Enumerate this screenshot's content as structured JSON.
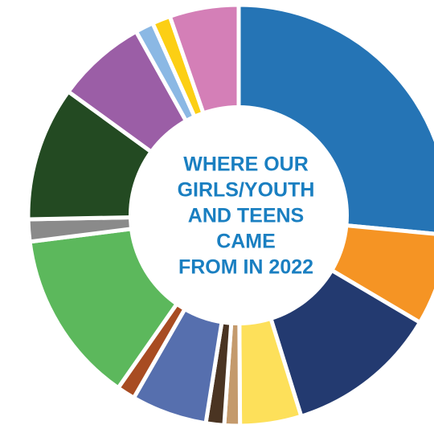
{
  "chart_data": {
    "type": "donut",
    "title": [
      "WHERE OUR",
      "GIRLS/YOUTH",
      "AND TEENS",
      "CAME",
      "FROM IN 2022"
    ],
    "values": [
      26.5,
      7,
      11.7,
      4.7,
      1.2,
      1.4,
      5.8,
      1.4,
      13.3,
      1.7,
      10.3,
      6.9,
      1.4,
      1.4,
      5.3
    ],
    "colors": [
      "#2574b5",
      "#f59424",
      "#233a70",
      "#fde05a",
      "#c49a6c",
      "#4a3422",
      "#566fae",
      "#a84c22",
      "#5cb85c",
      "#8a8a8a",
      "#234a22",
      "#9b5ea6",
      "#8bb8e4",
      "#fccf14",
      "#d47fb7"
    ]
  }
}
